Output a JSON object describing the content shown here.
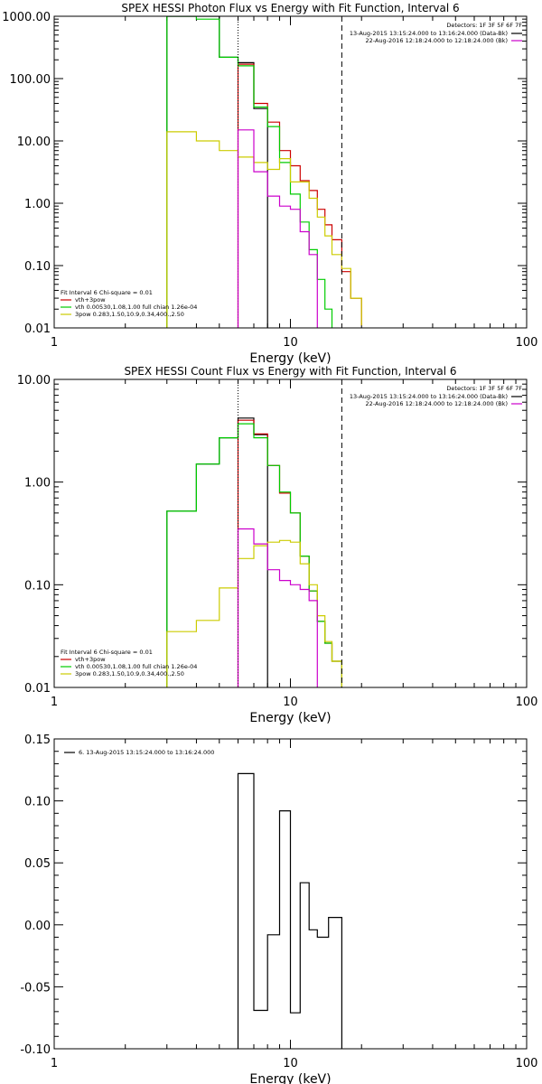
{
  "chart_data": [
    {
      "type": "line",
      "title": "SPEX HESSI Photon Flux vs Energy with Fit Function, Interval 6",
      "xlabel": "Energy (keV)",
      "ylabel": "",
      "xscale": "log",
      "yscale": "log",
      "xlim": [
        1,
        100
      ],
      "ylim": [
        0.01,
        1000
      ],
      "xticks": [
        {
          "v": 1,
          "label": "1"
        },
        {
          "v": 10,
          "label": "10"
        },
        {
          "v": 100,
          "label": "100"
        }
      ],
      "yticks": [
        {
          "v": 1000,
          "label": "1000.00"
        },
        {
          "v": 100,
          "label": "100.00"
        },
        {
          "v": 10,
          "label": "10.00"
        },
        {
          "v": 1,
          "label": "1.00"
        },
        {
          "v": 0.1,
          "label": "0.10"
        },
        {
          "v": 0.01,
          "label": "0.01"
        }
      ],
      "header": {
        "detectors": "Detectors: 1F 3F 5F 6F 7F",
        "lines": [
          {
            "text": "13-Aug-2015 13:15:24.000 to 13:16:24.000 (Data-Bk)",
            "color": "#000000"
          },
          {
            "text": "22-Aug-2016 12:18:24.000 to 12:18:24.000 (Bk)",
            "color": "#cc00cc"
          }
        ]
      },
      "legend": {
        "title": "Fit Interval  6    Chi-square = 0.01",
        "entries": [
          {
            "text": "vth+3pow",
            "color": "#cc0000"
          },
          {
            "text": "vth 0.00530,1.08,1.00   full chian 1.26e-04",
            "color": "#00cc00"
          },
          {
            "text": "3pow 0.283,1.50,10.9,0.34,400.,2.50",
            "color": "#cccc00"
          }
        ]
      },
      "vlines": [
        {
          "x": 6.0,
          "style": "dotted",
          "color": "#000000",
          "lower_color": "#cc00cc"
        },
        {
          "x": 16.5,
          "style": "dashed",
          "color": "#000000"
        }
      ],
      "series": [
        {
          "color": "#000000",
          "edges": [
            3,
            4,
            5,
            6,
            7,
            8
          ],
          "values": [
            1000,
            1000,
            220,
            180,
            33
          ]
        },
        {
          "color": "#cc0000",
          "edges": [
            6,
            7,
            8,
            9,
            10,
            11,
            12,
            13,
            14,
            15,
            16.5,
            18,
            20
          ],
          "values": [
            170,
            40,
            20,
            7,
            4,
            2.3,
            1.6,
            0.8,
            0.45,
            0.26,
            0.08,
            0.03,
            0.011
          ]
        },
        {
          "color": "#00cc00",
          "edges": [
            3,
            4,
            5,
            6,
            7,
            8,
            9,
            10,
            11,
            12,
            13,
            14,
            15
          ],
          "values": [
            1000,
            900,
            220,
            160,
            35,
            17,
            4.5,
            1.4,
            0.5,
            0.18,
            0.06,
            0.02
          ]
        },
        {
          "color": "#cccc00",
          "edges": [
            3,
            4,
            5,
            6,
            7,
            8,
            9,
            10,
            11,
            12,
            13,
            14,
            15,
            16.5,
            18,
            20
          ],
          "values": [
            14,
            10,
            7,
            5.5,
            4.5,
            3.5,
            5.2,
            2.2,
            2.2,
            1.2,
            0.6,
            0.3,
            0.15,
            0.09,
            0.03,
            0.011
          ]
        },
        {
          "color": "#cc00cc",
          "edges": [
            6,
            7,
            8,
            9,
            10,
            11,
            12,
            13
          ],
          "values": [
            15,
            3.2,
            1.3,
            0.9,
            0.8,
            0.35,
            0.15
          ]
        }
      ]
    },
    {
      "type": "line",
      "title": "SPEX HESSI Count Flux vs Energy with Fit Function, Interval 6",
      "xlabel": "Energy (keV)",
      "ylabel": "",
      "xscale": "log",
      "yscale": "log",
      "xlim": [
        1,
        100
      ],
      "ylim": [
        0.01,
        10
      ],
      "xticks": [
        {
          "v": 1,
          "label": "1"
        },
        {
          "v": 10,
          "label": "10"
        },
        {
          "v": 100,
          "label": "100"
        }
      ],
      "yticks": [
        {
          "v": 10,
          "label": "10.00"
        },
        {
          "v": 1,
          "label": "1.00"
        },
        {
          "v": 0.1,
          "label": "0.10"
        },
        {
          "v": 0.01,
          "label": "0.01"
        }
      ],
      "header": {
        "detectors": "Detectors: 1F 3F 5F 6F 7F",
        "lines": [
          {
            "text": "13-Aug-2015 13:15:24.000 to 13:16:24.000 (Data-Bk)",
            "color": "#000000"
          },
          {
            "text": "22-Aug-2016 12:18:24.000 to 12:18:24.000 (Bk)",
            "color": "#cc00cc"
          }
        ]
      },
      "legend": {
        "title": "Fit Interval  6    Chi-square = 0.01",
        "entries": [
          {
            "text": "vth+3pow",
            "color": "#cc0000"
          },
          {
            "text": "vth 0.00530,1.08,1.00   full chian 1.26e-04",
            "color": "#00cc00"
          },
          {
            "text": "3pow 0.283,1.50,10.9,0.34,400.,2.50",
            "color": "#cccc00"
          }
        ]
      },
      "vlines": [
        {
          "x": 6.0,
          "style": "dotted",
          "color": "#000000",
          "lower_color": "#cc00cc"
        },
        {
          "x": 16.5,
          "style": "dashed",
          "color": "#000000"
        }
      ],
      "series": [
        {
          "color": "#000000",
          "edges": [
            3,
            4,
            5,
            6,
            7,
            8
          ],
          "values": [
            0.52,
            1.5,
            2.7,
            4.2,
            2.9
          ]
        },
        {
          "color": "#cc0000",
          "edges": [
            6,
            7,
            8,
            9,
            10,
            11,
            12,
            13,
            14,
            15,
            16.5
          ],
          "values": [
            4.0,
            2.95,
            1.45,
            0.78,
            0.5,
            0.19,
            0.087,
            0.044,
            0.027,
            0.018
          ]
        },
        {
          "color": "#00cc00",
          "edges": [
            3,
            4,
            5,
            6,
            7,
            8,
            9,
            10,
            11,
            12,
            13,
            14,
            15,
            16.5
          ],
          "values": [
            0.52,
            1.5,
            2.7,
            3.7,
            2.7,
            1.45,
            0.8,
            0.5,
            0.19,
            0.087,
            0.044,
            0.027,
            0.018
          ]
        },
        {
          "color": "#cccc00",
          "edges": [
            3,
            4,
            5,
            6,
            7,
            8,
            9,
            10,
            11,
            12,
            13,
            14,
            15,
            16.5
          ],
          "values": [
            0.035,
            0.045,
            0.093,
            0.18,
            0.24,
            0.26,
            0.27,
            0.26,
            0.16,
            0.1,
            0.05,
            0.028,
            0.018
          ]
        },
        {
          "color": "#cc00cc",
          "edges": [
            6,
            7,
            8,
            9,
            10,
            11,
            12,
            13
          ],
          "values": [
            0.35,
            0.25,
            0.14,
            0.11,
            0.1,
            0.09,
            0.07
          ]
        }
      ]
    },
    {
      "type": "line",
      "title": "",
      "xlabel": "Energy (keV)",
      "ylabel": "",
      "xscale": "log",
      "yscale": "linear",
      "xlim": [
        1,
        100
      ],
      "ylim": [
        -0.1,
        0.15
      ],
      "xticks": [
        {
          "v": 1,
          "label": "1"
        },
        {
          "v": 10,
          "label": "10"
        },
        {
          "v": 100,
          "label": "100"
        }
      ],
      "yticks": [
        {
          "v": 0.15,
          "label": "0.15"
        },
        {
          "v": 0.1,
          "label": "0.10"
        },
        {
          "v": 0.05,
          "label": "0.05"
        },
        {
          "v": 0.0,
          "label": "0.00"
        },
        {
          "v": -0.05,
          "label": "-0.05"
        },
        {
          "v": -0.1,
          "label": "-0.10"
        }
      ],
      "legend": {
        "entries": [
          {
            "text": "6. 13-Aug-2015 13:15:24.000 to 13:16:24.000",
            "color": "#000000"
          }
        ]
      },
      "series": [
        {
          "color": "#000000",
          "edges": [
            6,
            7,
            8,
            9,
            10,
            11,
            12,
            13,
            14.5,
            16.5
          ],
          "values": [
            0.122,
            -0.069,
            -0.008,
            0.092,
            -0.071,
            0.034,
            -0.004,
            -0.01,
            0.006
          ]
        }
      ]
    }
  ]
}
